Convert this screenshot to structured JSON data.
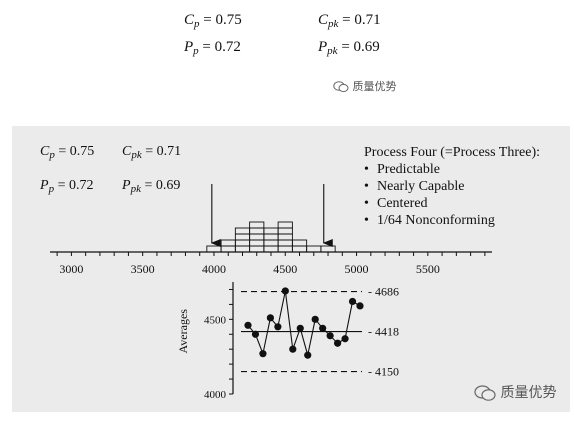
{
  "top_indices": {
    "cp": {
      "sym": "C",
      "sub": "p",
      "val": "= 0.75"
    },
    "cpk": {
      "sym": "C",
      "sub": "pk",
      "val": "= 0.71"
    },
    "pp": {
      "sym": "P",
      "sub": "p",
      "val": "= 0.72"
    },
    "ppk": {
      "sym": "P",
      "sub": "pk",
      "val": "= 0.69"
    }
  },
  "watermark_text": "质量优势",
  "panel_indices": {
    "cp": {
      "sym": "C",
      "sub": "p",
      "val": "= 0.75"
    },
    "cpk": {
      "sym": "C",
      "sub": "pk",
      "val": "= 0.71"
    },
    "pp": {
      "sym": "P",
      "sub": "p",
      "val": "= 0.72"
    },
    "ppk": {
      "sym": "P",
      "sub": "pk",
      "val": "= 0.69"
    }
  },
  "notes": {
    "title": "Process Four (=Process Three):",
    "bullets": [
      "Predictable",
      "Nearly Capable",
      "Centered",
      "1/64 Nonconforming"
    ]
  },
  "colors": {
    "panel_bg": "#ebebeb",
    "ink": "#111111"
  },
  "icons": {
    "watermark": "wechat-icon",
    "spec_limit": "arrow-down-icon"
  },
  "chart_data": [
    {
      "type": "bar",
      "subtype": "histogram",
      "x_ticks": [
        3000,
        3500,
        4000,
        4500,
        5000,
        5500
      ],
      "x_tick_labels": [
        "3000",
        "3500",
        "4000",
        "4500",
        "5000",
        "5500"
      ],
      "xlim": [
        2850,
        5950
      ],
      "bin_width": 100,
      "bins": [
        {
          "start": 3950,
          "count": 1
        },
        {
          "start": 4050,
          "count": 2
        },
        {
          "start": 4150,
          "count": 4
        },
        {
          "start": 4250,
          "count": 5
        },
        {
          "start": 4350,
          "count": 4
        },
        {
          "start": 4450,
          "count": 5
        },
        {
          "start": 4550,
          "count": 2
        },
        {
          "start": 4650,
          "count": 1
        },
        {
          "start": 4750,
          "count": 1
        }
      ],
      "spec_limits": {
        "lower": 3985,
        "upper": 4770
      }
    },
    {
      "type": "line",
      "subtype": "control chart",
      "ylabel": "Averages",
      "ylim": [
        4000,
        4750
      ],
      "y_ticks": [
        4000,
        4500
      ],
      "y_tick_labels": [
        "4000",
        "4500"
      ],
      "center_line": 4418,
      "ucl": 4686,
      "lcl": 4150,
      "limit_labels": [
        "4686",
        "4418",
        "4150"
      ],
      "x": [
        1,
        2,
        3,
        4,
        5,
        6,
        7,
        8,
        9,
        10,
        11,
        12,
        13,
        14,
        15,
        16
      ],
      "values": [
        4460,
        4400,
        4270,
        4510,
        4450,
        4690,
        4300,
        4440,
        4260,
        4500,
        4440,
        4390,
        4340,
        4370,
        4620,
        4590
      ]
    }
  ]
}
